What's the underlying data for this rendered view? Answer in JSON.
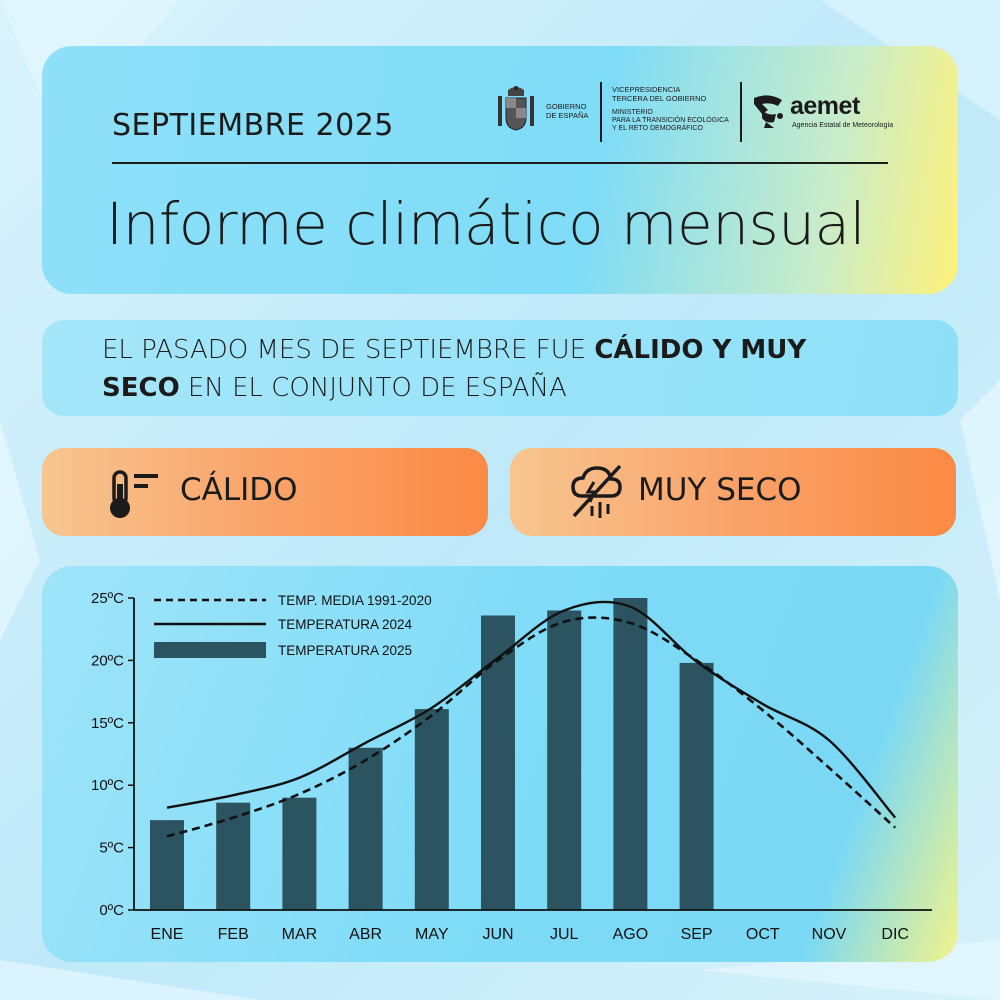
{
  "header": {
    "month": "SEPTIEMBRE 2025",
    "title": "Informe climático mensual",
    "gov_line1": "GOBIERNO",
    "gov_line2": "DE ESPAÑA",
    "vice_line1": "VICEPRESIDENCIA",
    "vice_line2": "TERCERA DEL GOBIERNO",
    "min_line1": "MINISTERIO",
    "min_line2": "PARA LA TRANSICIÓN ECOLÓGICA",
    "min_line3": "Y EL RETO DEMOGRÁFICO",
    "aemet_name": "aemet",
    "aemet_sub": "Agencia Estatal de Meteorología"
  },
  "summary": {
    "part1": "EL PASADO MES DE SEPTIEMBRE FUE ",
    "bold1": "CÁLIDO Y MUY",
    "bold2": "SECO",
    "part2": " EN EL CONJUNTO DE ESPAÑA"
  },
  "badges": {
    "warm": "CÁLIDO",
    "dry": "MUY SECO"
  },
  "icons": {
    "warm": "thermometer-icon",
    "dry": "no-rain-cloud-icon"
  },
  "colors": {
    "bar": "#2c5460",
    "badge": "#fb8a44",
    "card": "#7fdcf7"
  },
  "chart_data": {
    "type": "bar",
    "categories": [
      "ENE",
      "FEB",
      "MAR",
      "ABR",
      "MAY",
      "JUN",
      "JUL",
      "AGO",
      "SEP",
      "OCT",
      "NOV",
      "DIC"
    ],
    "ylim": [
      0,
      25
    ],
    "yticks": [
      "0ºC",
      "5ºC",
      "10ºC",
      "15ºC",
      "20ºC",
      "25ºC"
    ],
    "legend": [
      "TEMP. MEDIA 1991-2020",
      "TEMPERATURA 2024",
      "TEMPERATURA 2025"
    ],
    "series": [
      {
        "name": "TEMPERATURA 2025",
        "type": "bar",
        "values": [
          7.2,
          8.6,
          9.0,
          13.0,
          16.1,
          23.6,
          24.0,
          25.0,
          19.8,
          null,
          null,
          null
        ]
      },
      {
        "name": "TEMPERATURA 2024",
        "type": "line",
        "style": "solid",
        "values": [
          8.2,
          9.2,
          10.6,
          13.4,
          16.2,
          20.2,
          24.0,
          24.3,
          19.9,
          16.5,
          13.6,
          7.4
        ]
      },
      {
        "name": "TEMP. MEDIA 1991-2020",
        "type": "line",
        "style": "dashed",
        "values": [
          5.9,
          7.4,
          9.3,
          12.0,
          15.6,
          20.0,
          23.1,
          23.0,
          20.0,
          16.0,
          11.4,
          6.6
        ]
      }
    ]
  }
}
